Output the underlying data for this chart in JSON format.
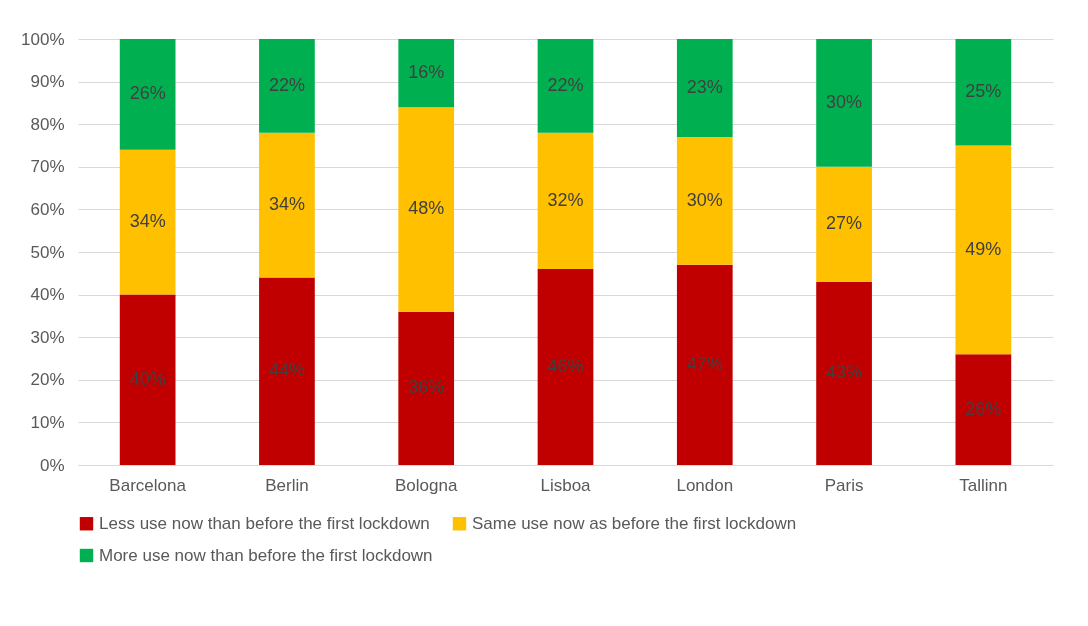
{
  "chart_data": {
    "type": "bar",
    "stacked": true,
    "categories": [
      "Barcelona",
      "Berlin",
      "Bologna",
      "Lisboa",
      "London",
      "Paris",
      "Tallinn"
    ],
    "series": [
      {
        "name": "Less use now than before the first lockdown",
        "color": "#c00000",
        "values": [
          40,
          44,
          36,
          46,
          47,
          43,
          26
        ],
        "value_labels": [
          "40%",
          "44%",
          "36%",
          "46%",
          "47%",
          "43%",
          "26%"
        ]
      },
      {
        "name": "Same use now as before the first lockdown",
        "color": "#ffc000",
        "values": [
          34,
          34,
          48,
          32,
          30,
          27,
          49
        ],
        "value_labels": [
          "34%",
          "34%",
          "48%",
          "32%",
          "30%",
          "27%",
          "49%"
        ]
      },
      {
        "name": "More use now than before the first lockdown",
        "color": "#00b050",
        "values": [
          26,
          22,
          16,
          22,
          23,
          30,
          25
        ],
        "value_labels": [
          "26%",
          "22%",
          "16%",
          "22%",
          "23%",
          "30%",
          "25%"
        ]
      }
    ],
    "ylim": [
      0,
      100
    ],
    "yticks": [
      {
        "value": 0,
        "label": "0%"
      },
      {
        "value": 10,
        "label": "10%"
      },
      {
        "value": 20,
        "label": "20%"
      },
      {
        "value": 30,
        "label": "30%"
      },
      {
        "value": 40,
        "label": "40%"
      },
      {
        "value": 50,
        "label": "50%"
      },
      {
        "value": 60,
        "label": "60%"
      },
      {
        "value": 70,
        "label": "70%"
      },
      {
        "value": 80,
        "label": "80%"
      },
      {
        "value": 90,
        "label": "90%"
      },
      {
        "value": 100,
        "label": "100%"
      }
    ],
    "grid": "y",
    "legend": "bottom"
  }
}
